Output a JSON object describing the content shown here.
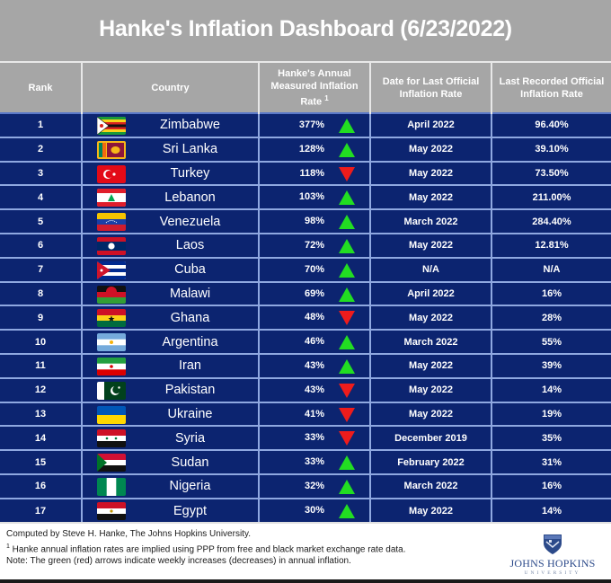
{
  "title": "Hanke's Inflation Dashboard (6/23/2022)",
  "colors": {
    "title_band": "#a6a6a6",
    "header_bg": "#a6a6a6",
    "body_bg": "#0c2470",
    "grid_line": "#8fa8e0",
    "arrow_up": "#22dd22",
    "arrow_down": "#ee1c1c"
  },
  "header": {
    "rank": "Rank",
    "country": "Country",
    "hanke": "Hanke's Annual Measured Inflation Rate",
    "hanke_footnote_mark": "1",
    "date": "Date for Last Official Inflation Rate",
    "official": "Last Recorded Official Inflation Rate"
  },
  "rows": [
    {
      "rank": "1",
      "country": "Zimbabwe",
      "flag": "zimbabwe-flag",
      "hanke": "377%",
      "trend": "up",
      "date": "April 2022",
      "official": "96.40%"
    },
    {
      "rank": "2",
      "country": "Sri Lanka",
      "flag": "sri-lanka-flag",
      "hanke": "128%",
      "trend": "up",
      "date": "May 2022",
      "official": "39.10%"
    },
    {
      "rank": "3",
      "country": "Turkey",
      "flag": "turkey-flag",
      "hanke": "118%",
      "trend": "down",
      "date": "May 2022",
      "official": "73.50%"
    },
    {
      "rank": "4",
      "country": "Lebanon",
      "flag": "lebanon-flag",
      "hanke": "103%",
      "trend": "up",
      "date": "May 2022",
      "official": "211.00%"
    },
    {
      "rank": "5",
      "country": "Venezuela",
      "flag": "venezuela-flag",
      "hanke": "98%",
      "trend": "up",
      "date": "March 2022",
      "official": "284.40%"
    },
    {
      "rank": "6",
      "country": "Laos",
      "flag": "laos-flag",
      "hanke": "72%",
      "trend": "up",
      "date": "May 2022",
      "official": "12.81%"
    },
    {
      "rank": "7",
      "country": "Cuba",
      "flag": "cuba-flag",
      "hanke": "70%",
      "trend": "up",
      "date": "N/A",
      "official": "N/A"
    },
    {
      "rank": "8",
      "country": "Malawi",
      "flag": "malawi-flag",
      "hanke": "69%",
      "trend": "up",
      "date": "April 2022",
      "official": "16%"
    },
    {
      "rank": "9",
      "country": "Ghana",
      "flag": "ghana-flag",
      "hanke": "48%",
      "trend": "down",
      "date": "May 2022",
      "official": "28%"
    },
    {
      "rank": "10",
      "country": "Argentina",
      "flag": "argentina-flag",
      "hanke": "46%",
      "trend": "up",
      "date": "March 2022",
      "official": "55%"
    },
    {
      "rank": "11",
      "country": "Iran",
      "flag": "iran-flag",
      "hanke": "43%",
      "trend": "up",
      "date": "May 2022",
      "official": "39%"
    },
    {
      "rank": "12",
      "country": "Pakistan",
      "flag": "pakistan-flag",
      "hanke": "43%",
      "trend": "down",
      "date": "May 2022",
      "official": "14%"
    },
    {
      "rank": "13",
      "country": "Ukraine",
      "flag": "ukraine-flag",
      "hanke": "41%",
      "trend": "down",
      "date": "May 2022",
      "official": "19%"
    },
    {
      "rank": "14",
      "country": "Syria",
      "flag": "syria-flag",
      "hanke": "33%",
      "trend": "down",
      "date": "December 2019",
      "official": "35%"
    },
    {
      "rank": "15",
      "country": "Sudan",
      "flag": "sudan-flag",
      "hanke": "33%",
      "trend": "up",
      "date": "February 2022",
      "official": "31%"
    },
    {
      "rank": "16",
      "country": "Nigeria",
      "flag": "nigeria-flag",
      "hanke": "32%",
      "trend": "up",
      "date": "March 2022",
      "official": "16%"
    },
    {
      "rank": "17",
      "country": "Egypt",
      "flag": "egypt-flag",
      "hanke": "30%",
      "trend": "up",
      "date": "May 2022",
      "official": "14%"
    }
  ],
  "footer": {
    "line1": "Computed by Steve H. Hanke, The Johns Hopkins University.",
    "line2_mark": "1",
    "line2": " Hanke annual inflation rates are implied using PPP from free and black market exchange rate data.",
    "line3": "Note: The green (red) arrows indicate weekly increases (decreases) in annual inflation.",
    "logo_name": "JOHNS HOPKINS",
    "logo_sub": "UNIVERSITY"
  },
  "chart_data": {
    "type": "table",
    "title": "Hanke's Inflation Dashboard (6/23/2022)",
    "columns": [
      "Rank",
      "Country",
      "Hanke's Annual Measured Inflation Rate",
      "Weekly Trend",
      "Date for Last Official Inflation Rate",
      "Last Recorded Official Inflation Rate"
    ],
    "categories": [
      "Zimbabwe",
      "Sri Lanka",
      "Turkey",
      "Lebanon",
      "Venezuela",
      "Laos",
      "Cuba",
      "Malawi",
      "Ghana",
      "Argentina",
      "Iran",
      "Pakistan",
      "Ukraine",
      "Syria",
      "Sudan",
      "Nigeria",
      "Egypt"
    ],
    "series": [
      {
        "name": "Hanke's Annual Measured Inflation Rate (%)",
        "values": [
          377,
          128,
          118,
          103,
          98,
          72,
          70,
          69,
          48,
          46,
          43,
          43,
          41,
          33,
          33,
          32,
          30
        ]
      },
      {
        "name": "Weekly Trend",
        "values": [
          "up",
          "up",
          "down",
          "up",
          "up",
          "up",
          "up",
          "up",
          "down",
          "up",
          "up",
          "down",
          "down",
          "down",
          "up",
          "up",
          "up"
        ]
      },
      {
        "name": "Date for Last Official Inflation Rate",
        "values": [
          "April 2022",
          "May 2022",
          "May 2022",
          "May 2022",
          "March 2022",
          "May 2022",
          "N/A",
          "April 2022",
          "May 2022",
          "March 2022",
          "May 2022",
          "May 2022",
          "May 2022",
          "December 2019",
          "February 2022",
          "March 2022",
          "May 2022"
        ]
      },
      {
        "name": "Last Recorded Official Inflation Rate (%)",
        "values": [
          96.4,
          39.1,
          73.5,
          211.0,
          284.4,
          12.81,
          null,
          16,
          28,
          55,
          39,
          14,
          19,
          35,
          31,
          16,
          14
        ]
      }
    ],
    "annotations": [
      "Computed by Steve H. Hanke, The Johns Hopkins University.",
      "1 Hanke annual inflation rates are implied using PPP from free and black market exchange rate data.",
      "Note: The green (red) arrows indicate weekly increases (decreases) in annual inflation."
    ]
  }
}
